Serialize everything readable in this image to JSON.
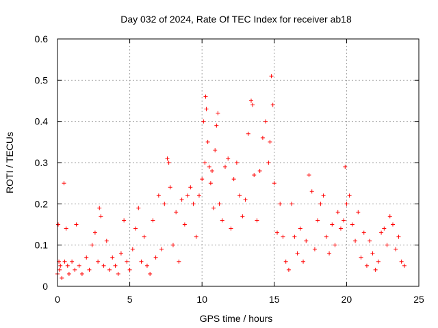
{
  "chart_data": {
    "type": "scatter",
    "title": "Day 032 of 2024, Rate Of TEC Index for receiver ab18",
    "xlabel": "GPS time / hours",
    "ylabel": "ROTI / TECUs",
    "xlim": [
      0,
      25
    ],
    "ylim": [
      0,
      0.6
    ],
    "xticks": [
      "0",
      "5",
      "10",
      "15",
      "20",
      "25"
    ],
    "yticks": [
      "0",
      "0.1",
      "0.2",
      "0.3",
      "0.4",
      "0.5",
      "0.6"
    ],
    "xtick_values": [
      0,
      5,
      10,
      15,
      20,
      25
    ],
    "ytick_values": [
      0,
      0.1,
      0.2,
      0.3,
      0.4,
      0.5,
      0.6
    ],
    "grid": true,
    "marker": "+",
    "color": "#ff0000",
    "series": [
      {
        "x": [
          0.0,
          0.05,
          0.1,
          0.15,
          0.2,
          0.3,
          0.45,
          0.5,
          0.6,
          0.7,
          0.8,
          1.0,
          1.2,
          1.3,
          1.5,
          1.7,
          2.0,
          2.2,
          2.4,
          2.6,
          2.8,
          2.9,
          3.0,
          3.2,
          3.4,
          3.6,
          3.8,
          4.0,
          4.2,
          4.4,
          4.6,
          4.8,
          5.0,
          5.2,
          5.4,
          5.6,
          5.8,
          6.0,
          6.2,
          6.4,
          6.6,
          6.8,
          7.0,
          7.2,
          7.4,
          7.6,
          7.7,
          7.8,
          8.0,
          8.2,
          8.4,
          8.6,
          8.8,
          9.0,
          9.2,
          9.4,
          9.6,
          9.8,
          10.0,
          10.1,
          10.2,
          10.25,
          10.3,
          10.4,
          10.5,
          10.6,
          10.7,
          10.8,
          10.9,
          11.0,
          11.1,
          11.2,
          11.4,
          11.6,
          11.8,
          12.0,
          12.2,
          12.4,
          12.6,
          12.8,
          13.0,
          13.2,
          13.4,
          13.5,
          13.6,
          13.8,
          14.0,
          14.2,
          14.4,
          14.6,
          14.7,
          14.8,
          14.9,
          15.0,
          15.2,
          15.4,
          15.6,
          15.8,
          16.0,
          16.2,
          16.4,
          16.6,
          16.8,
          17.0,
          17.2,
          17.4,
          17.6,
          17.8,
          18.0,
          18.2,
          18.4,
          18.6,
          18.8,
          19.0,
          19.2,
          19.4,
          19.6,
          19.8,
          19.9,
          20.0,
          20.2,
          20.4,
          20.6,
          20.8,
          21.0,
          21.2,
          21.4,
          21.6,
          21.8,
          22.0,
          22.2,
          22.4,
          22.6,
          22.8,
          23.0,
          23.2,
          23.4,
          23.6,
          23.8,
          24.0
        ],
        "y": [
          0.03,
          0.15,
          0.06,
          0.04,
          0.05,
          0.02,
          0.25,
          0.06,
          0.14,
          0.05,
          0.03,
          0.06,
          0.04,
          0.15,
          0.05,
          0.03,
          0.07,
          0.04,
          0.1,
          0.13,
          0.06,
          0.19,
          0.17,
          0.05,
          0.11,
          0.04,
          0.07,
          0.05,
          0.03,
          0.08,
          0.16,
          0.06,
          0.04,
          0.09,
          0.14,
          0.19,
          0.06,
          0.12,
          0.05,
          0.03,
          0.16,
          0.07,
          0.22,
          0.09,
          0.2,
          0.31,
          0.3,
          0.24,
          0.1,
          0.18,
          0.06,
          0.21,
          0.15,
          0.22,
          0.24,
          0.2,
          0.12,
          0.22,
          0.26,
          0.4,
          0.3,
          0.46,
          0.43,
          0.35,
          0.29,
          0.25,
          0.28,
          0.19,
          0.33,
          0.39,
          0.42,
          0.2,
          0.16,
          0.29,
          0.31,
          0.14,
          0.26,
          0.3,
          0.22,
          0.17,
          0.21,
          0.37,
          0.45,
          0.44,
          0.27,
          0.16,
          0.28,
          0.36,
          0.4,
          0.3,
          0.35,
          0.51,
          0.44,
          0.25,
          0.13,
          0.2,
          0.12,
          0.06,
          0.04,
          0.2,
          0.12,
          0.08,
          0.14,
          0.06,
          0.11,
          0.27,
          0.23,
          0.09,
          0.16,
          0.2,
          0.22,
          0.12,
          0.08,
          0.15,
          0.1,
          0.18,
          0.14,
          0.16,
          0.29,
          0.2,
          0.22,
          0.15,
          0.11,
          0.18,
          0.07,
          0.13,
          0.05,
          0.11,
          0.08,
          0.04,
          0.06,
          0.13,
          0.14,
          0.1,
          0.17,
          0.15,
          0.09,
          0.12,
          0.06,
          0.05
        ]
      }
    ]
  }
}
